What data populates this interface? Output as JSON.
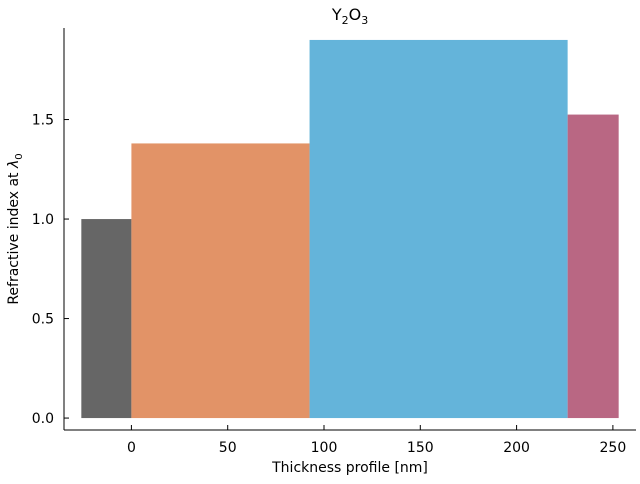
{
  "chart_data": {
    "type": "bar",
    "title_main": "Y",
    "title_sub1": "2",
    "title_mid": "O",
    "title_sub2": "3",
    "xlabel": "Thickness profile [nm]",
    "ylabel_main": "Refractive index at ",
    "ylabel_symbol": "λ",
    "ylabel_sub": "0",
    "xlim": [
      -35,
      262
    ],
    "ylim": [
      -0.06,
      1.96
    ],
    "x_ticks": [
      0,
      50,
      100,
      150,
      200,
      250
    ],
    "y_ticks": [
      0.0,
      0.5,
      1.0,
      1.5
    ],
    "grid": false,
    "layers": [
      {
        "x_start": -26,
        "x_end": 0,
        "value": 1.0,
        "color": "#666666"
      },
      {
        "x_start": 0,
        "x_end": 92.5,
        "value": 1.38,
        "color": "#e29367"
      },
      {
        "x_start": 92.5,
        "x_end": 226.5,
        "value": 1.9,
        "color": "#64b4da"
      },
      {
        "x_start": 226.5,
        "x_end": 253,
        "value": 1.525,
        "color": "#b96783"
      }
    ]
  }
}
